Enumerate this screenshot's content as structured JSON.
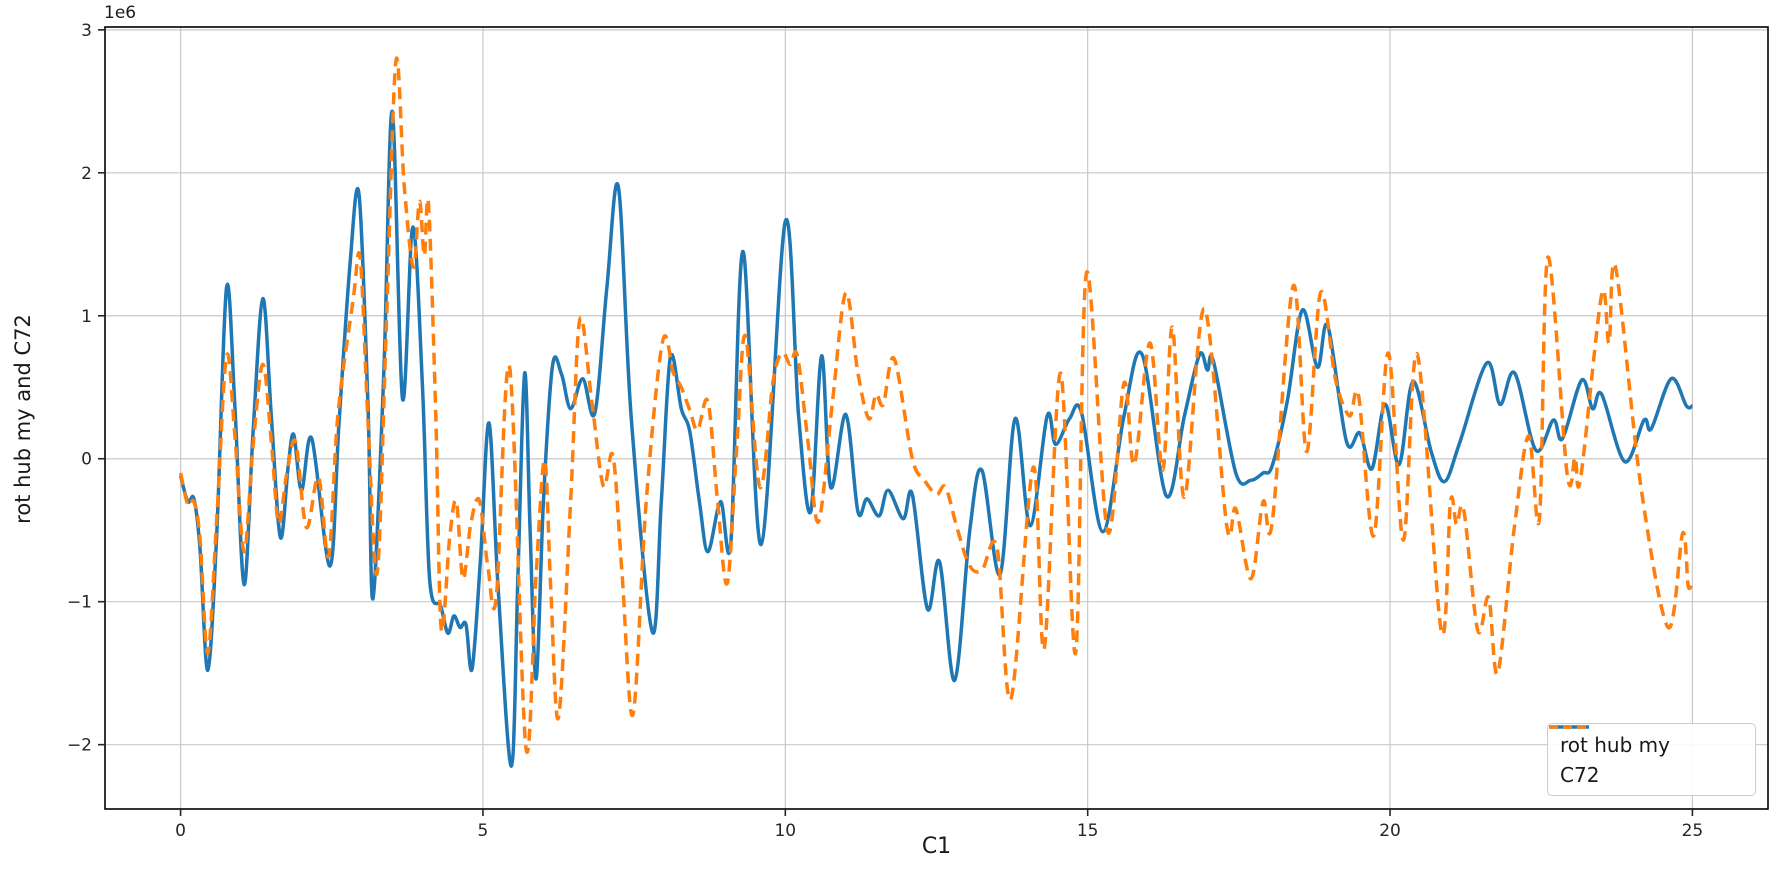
{
  "figure": {
    "background": "#ffffff",
    "offset_text": "1e6"
  },
  "chart_data": {
    "type": "line",
    "title": "",
    "xlabel": "C1",
    "ylabel": "rot hub my and C72",
    "y_offset_label": "1e6",
    "y_scale_factor": 1000000,
    "xlim": [
      -1.25,
      26.25
    ],
    "ylim": [
      -2.45,
      3.02
    ],
    "x_ticks": [
      0,
      5,
      10,
      15,
      20,
      25
    ],
    "y_ticks": [
      -2,
      -1,
      0,
      1,
      2,
      3
    ],
    "grid": true,
    "grid_color": "#c9c9c9",
    "spine_color": "#000000",
    "tick_color": "#262626",
    "legend_loc": "lower right",
    "series": [
      {
        "name": "rot hub my",
        "color": "#1f77b4",
        "linestyle": "solid",
        "linewidth": 3.5,
        "points": [
          [
            0,
            -0.12
          ],
          [
            0.12,
            -0.3
          ],
          [
            0.22,
            -0.28
          ],
          [
            0.32,
            -0.62
          ],
          [
            0.45,
            -1.48
          ],
          [
            0.6,
            -0.5
          ],
          [
            0.76,
            1.2
          ],
          [
            0.9,
            0.35
          ],
          [
            1.05,
            -0.88
          ],
          [
            1.2,
            0.2
          ],
          [
            1.36,
            1.12
          ],
          [
            1.5,
            0.3
          ],
          [
            1.65,
            -0.55
          ],
          [
            1.78,
            -0.05
          ],
          [
            1.87,
            0.17
          ],
          [
            2.0,
            -0.22
          ],
          [
            2.17,
            0.14
          ],
          [
            2.47,
            -0.75
          ],
          [
            2.62,
            0.25
          ],
          [
            2.8,
            1.35
          ],
          [
            2.95,
            1.85
          ],
          [
            3.1,
            0.35
          ],
          [
            3.18,
            -0.98
          ],
          [
            3.36,
            0.6
          ],
          [
            3.5,
            2.43
          ],
          [
            3.67,
            0.42
          ],
          [
            3.84,
            1.62
          ],
          [
            4.0,
            0.5
          ],
          [
            4.12,
            -0.85
          ],
          [
            4.3,
            -1.03
          ],
          [
            4.42,
            -1.22
          ],
          [
            4.52,
            -1.1
          ],
          [
            4.62,
            -1.18
          ],
          [
            4.72,
            -1.16
          ],
          [
            4.82,
            -1.47
          ],
          [
            4.96,
            -0.7
          ],
          [
            5.1,
            0.25
          ],
          [
            5.25,
            -0.9
          ],
          [
            5.47,
            -2.15
          ],
          [
            5.58,
            -0.8
          ],
          [
            5.69,
            0.6
          ],
          [
            5.78,
            -0.5
          ],
          [
            5.88,
            -1.54
          ],
          [
            6.0,
            -0.3
          ],
          [
            6.15,
            0.65
          ],
          [
            6.3,
            0.59
          ],
          [
            6.45,
            0.35
          ],
          [
            6.65,
            0.56
          ],
          [
            6.85,
            0.32
          ],
          [
            7.05,
            1.2
          ],
          [
            7.24,
            1.9
          ],
          [
            7.45,
            0.3
          ],
          [
            7.8,
            -1.21
          ],
          [
            7.95,
            -0.3
          ],
          [
            8.1,
            0.71
          ],
          [
            8.28,
            0.35
          ],
          [
            8.42,
            0.19
          ],
          [
            8.58,
            -0.3
          ],
          [
            8.72,
            -0.65
          ],
          [
            8.93,
            -0.3
          ],
          [
            9.1,
            -0.58
          ],
          [
            9.3,
            1.45
          ],
          [
            9.6,
            -0.6
          ],
          [
            10.0,
            1.66
          ],
          [
            10.22,
            0.3
          ],
          [
            10.42,
            -0.37
          ],
          [
            10.6,
            0.72
          ],
          [
            10.75,
            -0.2
          ],
          [
            11.0,
            0.31
          ],
          [
            11.2,
            -0.37
          ],
          [
            11.35,
            -0.28
          ],
          [
            11.55,
            -0.4
          ],
          [
            11.7,
            -0.22
          ],
          [
            11.95,
            -0.42
          ],
          [
            12.1,
            -0.25
          ],
          [
            12.35,
            -1.05
          ],
          [
            12.55,
            -0.72
          ],
          [
            12.8,
            -1.55
          ],
          [
            13.05,
            -0.5
          ],
          [
            13.25,
            -0.08
          ],
          [
            13.55,
            -0.81
          ],
          [
            13.8,
            0.28
          ],
          [
            14.05,
            -0.47
          ],
          [
            14.33,
            0.3
          ],
          [
            14.47,
            0.1
          ],
          [
            14.7,
            0.28
          ],
          [
            14.9,
            0.32
          ],
          [
            15.25,
            -0.51
          ],
          [
            15.6,
            0.3
          ],
          [
            15.9,
            0.73
          ],
          [
            16.3,
            -0.26
          ],
          [
            16.6,
            0.3
          ],
          [
            16.85,
            0.73
          ],
          [
            16.98,
            0.62
          ],
          [
            17.08,
            0.68
          ],
          [
            17.45,
            -0.1
          ],
          [
            17.7,
            -0.15
          ],
          [
            17.9,
            -0.1
          ],
          [
            18.05,
            -0.05
          ],
          [
            18.3,
            0.4
          ],
          [
            18.55,
            1.04
          ],
          [
            18.8,
            0.64
          ],
          [
            18.97,
            0.93
          ],
          [
            19.28,
            0.12
          ],
          [
            19.5,
            0.18
          ],
          [
            19.7,
            -0.07
          ],
          [
            19.92,
            0.38
          ],
          [
            20.15,
            -0.04
          ],
          [
            20.38,
            0.54
          ],
          [
            20.68,
            0.05
          ],
          [
            20.9,
            -0.16
          ],
          [
            21.15,
            0.11
          ],
          [
            21.6,
            0.67
          ],
          [
            21.82,
            0.38
          ],
          [
            22.06,
            0.6
          ],
          [
            22.41,
            0.06
          ],
          [
            22.7,
            0.27
          ],
          [
            22.85,
            0.14
          ],
          [
            23.17,
            0.55
          ],
          [
            23.35,
            0.35
          ],
          [
            23.5,
            0.45
          ],
          [
            23.88,
            -0.02
          ],
          [
            24.2,
            0.27
          ],
          [
            24.32,
            0.21
          ],
          [
            24.65,
            0.56
          ],
          [
            24.9,
            0.37
          ],
          [
            25.0,
            0.37
          ]
        ]
      },
      {
        "name": "C72",
        "color": "#ff7f0e",
        "linestyle": "dashed",
        "linewidth": 3.5,
        "points": [
          [
            0,
            -0.1
          ],
          [
            0.12,
            -0.32
          ],
          [
            0.22,
            -0.3
          ],
          [
            0.32,
            -0.55
          ],
          [
            0.45,
            -1.36
          ],
          [
            0.6,
            -0.4
          ],
          [
            0.76,
            0.72
          ],
          [
            0.9,
            0.15
          ],
          [
            1.05,
            -0.65
          ],
          [
            1.2,
            0.1
          ],
          [
            1.36,
            0.66
          ],
          [
            1.5,
            0.12
          ],
          [
            1.62,
            -0.45
          ],
          [
            1.75,
            -0.12
          ],
          [
            1.9,
            0.12
          ],
          [
            2.08,
            -0.48
          ],
          [
            2.28,
            -0.13
          ],
          [
            2.45,
            -0.68
          ],
          [
            2.6,
            0.3
          ],
          [
            2.85,
            1.1
          ],
          [
            2.97,
            1.4
          ],
          [
            3.1,
            0.25
          ],
          [
            3.25,
            -0.8
          ],
          [
            3.4,
            0.9
          ],
          [
            3.56,
            2.78
          ],
          [
            3.7,
            1.9
          ],
          [
            3.85,
            1.34
          ],
          [
            3.95,
            1.8
          ],
          [
            4.03,
            1.42
          ],
          [
            4.1,
            1.78
          ],
          [
            4.22,
            0.3
          ],
          [
            4.31,
            -1.19
          ],
          [
            4.45,
            -0.55
          ],
          [
            4.56,
            -0.3
          ],
          [
            4.67,
            -0.84
          ],
          [
            4.8,
            -0.45
          ],
          [
            4.94,
            -0.29
          ],
          [
            5.08,
            -0.75
          ],
          [
            5.22,
            -0.97
          ],
          [
            5.44,
            0.64
          ],
          [
            5.71,
            -2.02
          ],
          [
            5.88,
            -0.8
          ],
          [
            6.02,
            -0.01
          ],
          [
            6.12,
            -0.9
          ],
          [
            6.25,
            -1.81
          ],
          [
            6.45,
            -0.3
          ],
          [
            6.6,
            0.97
          ],
          [
            6.8,
            0.4
          ],
          [
            6.99,
            -0.19
          ],
          [
            7.15,
            0.02
          ],
          [
            7.3,
            -0.8
          ],
          [
            7.48,
            -1.79
          ],
          [
            7.7,
            -0.3
          ],
          [
            7.97,
            0.82
          ],
          [
            8.15,
            0.6
          ],
          [
            8.28,
            0.5
          ],
          [
            8.42,
            0.34
          ],
          [
            8.55,
            0.2
          ],
          [
            8.72,
            0.4
          ],
          [
            8.88,
            -0.3
          ],
          [
            9.04,
            -0.87
          ],
          [
            9.2,
            0.1
          ],
          [
            9.34,
            0.86
          ],
          [
            9.58,
            -0.2
          ],
          [
            9.8,
            0.55
          ],
          [
            9.95,
            0.74
          ],
          [
            10.08,
            0.66
          ],
          [
            10.2,
            0.72
          ],
          [
            10.38,
            0.1
          ],
          [
            10.55,
            -0.44
          ],
          [
            10.78,
            0.4
          ],
          [
            11.0,
            1.16
          ],
          [
            11.2,
            0.6
          ],
          [
            11.38,
            0.28
          ],
          [
            11.5,
            0.45
          ],
          [
            11.62,
            0.38
          ],
          [
            11.8,
            0.7
          ],
          [
            12.1,
            0.0
          ],
          [
            12.3,
            -0.15
          ],
          [
            12.5,
            -0.25
          ],
          [
            12.65,
            -0.2
          ],
          [
            12.85,
            -0.5
          ],
          [
            13.05,
            -0.75
          ],
          [
            13.25,
            -0.78
          ],
          [
            13.5,
            -0.62
          ],
          [
            13.73,
            -1.68
          ],
          [
            14.1,
            -0.06
          ],
          [
            14.28,
            -1.33
          ],
          [
            14.55,
            0.6
          ],
          [
            14.8,
            -1.36
          ],
          [
            14.98,
            1.3
          ],
          [
            15.33,
            -0.51
          ],
          [
            15.6,
            0.53
          ],
          [
            15.77,
            -0.04
          ],
          [
            16.03,
            0.81
          ],
          [
            16.24,
            -0.08
          ],
          [
            16.4,
            0.92
          ],
          [
            16.6,
            -0.27
          ],
          [
            16.93,
            1.05
          ],
          [
            17.3,
            -0.47
          ],
          [
            17.45,
            -0.35
          ],
          [
            17.7,
            -0.84
          ],
          [
            17.9,
            -0.3
          ],
          [
            18.05,
            -0.45
          ],
          [
            18.4,
            1.21
          ],
          [
            18.62,
            0.05
          ],
          [
            18.85,
            1.16
          ],
          [
            19.1,
            0.55
          ],
          [
            19.33,
            0.3
          ],
          [
            19.48,
            0.44
          ],
          [
            19.73,
            -0.54
          ],
          [
            19.97,
            0.74
          ],
          [
            20.22,
            -0.57
          ],
          [
            20.45,
            0.73
          ],
          [
            20.85,
            -1.21
          ],
          [
            21.0,
            -0.3
          ],
          [
            21.1,
            -0.46
          ],
          [
            21.22,
            -0.36
          ],
          [
            21.45,
            -1.2
          ],
          [
            21.63,
            -0.97
          ],
          [
            21.78,
            -1.5
          ],
          [
            22.05,
            -0.5
          ],
          [
            22.29,
            0.16
          ],
          [
            22.47,
            -0.42
          ],
          [
            22.61,
            1.41
          ],
          [
            22.93,
            -0.11
          ],
          [
            23.06,
            0.01
          ],
          [
            23.15,
            -0.14
          ],
          [
            23.5,
            1.15
          ],
          [
            23.62,
            0.81
          ],
          [
            23.73,
            1.34
          ],
          [
            24.15,
            -0.2
          ],
          [
            24.6,
            -1.18
          ],
          [
            24.84,
            -0.52
          ],
          [
            24.93,
            -0.89
          ],
          [
            25.0,
            -0.85
          ]
        ]
      }
    ]
  },
  "legend": {
    "items": [
      {
        "label": "rot hub my",
        "color": "#1f77b4",
        "linestyle": "solid"
      },
      {
        "label": "C72",
        "color": "#ff7f0e",
        "linestyle": "dashed"
      }
    ]
  }
}
